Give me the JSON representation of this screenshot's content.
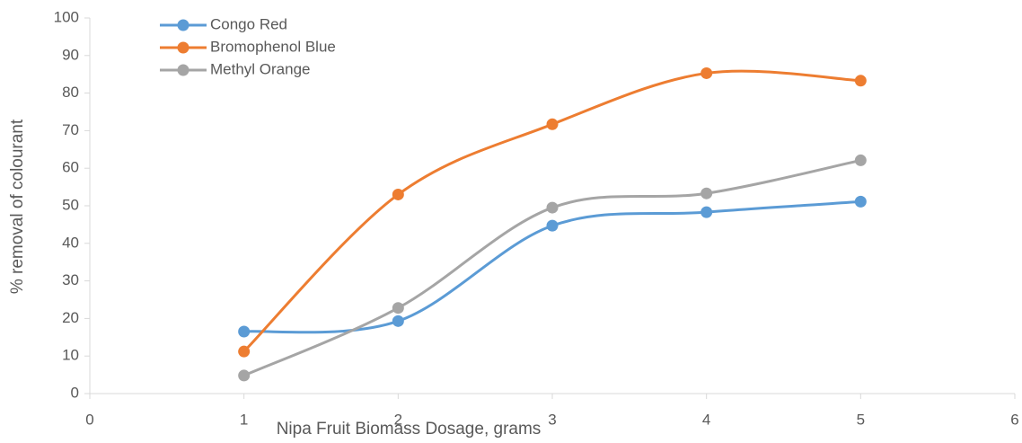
{
  "chart_data": {
    "type": "line",
    "x_label": "Nipa Fruit Biomass Dosage, grams",
    "y_label": "% removal of colourant",
    "x": [
      1,
      2,
      3,
      4,
      5
    ],
    "series": [
      {
        "name": "Congo Red",
        "color": "#5b9bd5",
        "values": [
          16.5,
          19.3,
          44.7,
          48.3,
          51.1
        ]
      },
      {
        "name": "Bromophenol Blue",
        "color": "#ed7d31",
        "values": [
          11.2,
          53.0,
          71.7,
          85.3,
          83.3
        ]
      },
      {
        "name": "Methyl Orange",
        "color": "#a5a5a5",
        "values": [
          4.8,
          22.8,
          49.5,
          53.3,
          62.1
        ]
      }
    ],
    "xlim": [
      0,
      6
    ],
    "xticks": [
      0,
      1,
      2,
      3,
      4,
      5,
      6
    ],
    "ylim": [
      0,
      100
    ],
    "yticks": [
      0,
      10,
      20,
      30,
      40,
      50,
      60,
      70,
      80,
      90,
      100
    ],
    "smooth": true,
    "grid": false,
    "legend": "upper left"
  }
}
